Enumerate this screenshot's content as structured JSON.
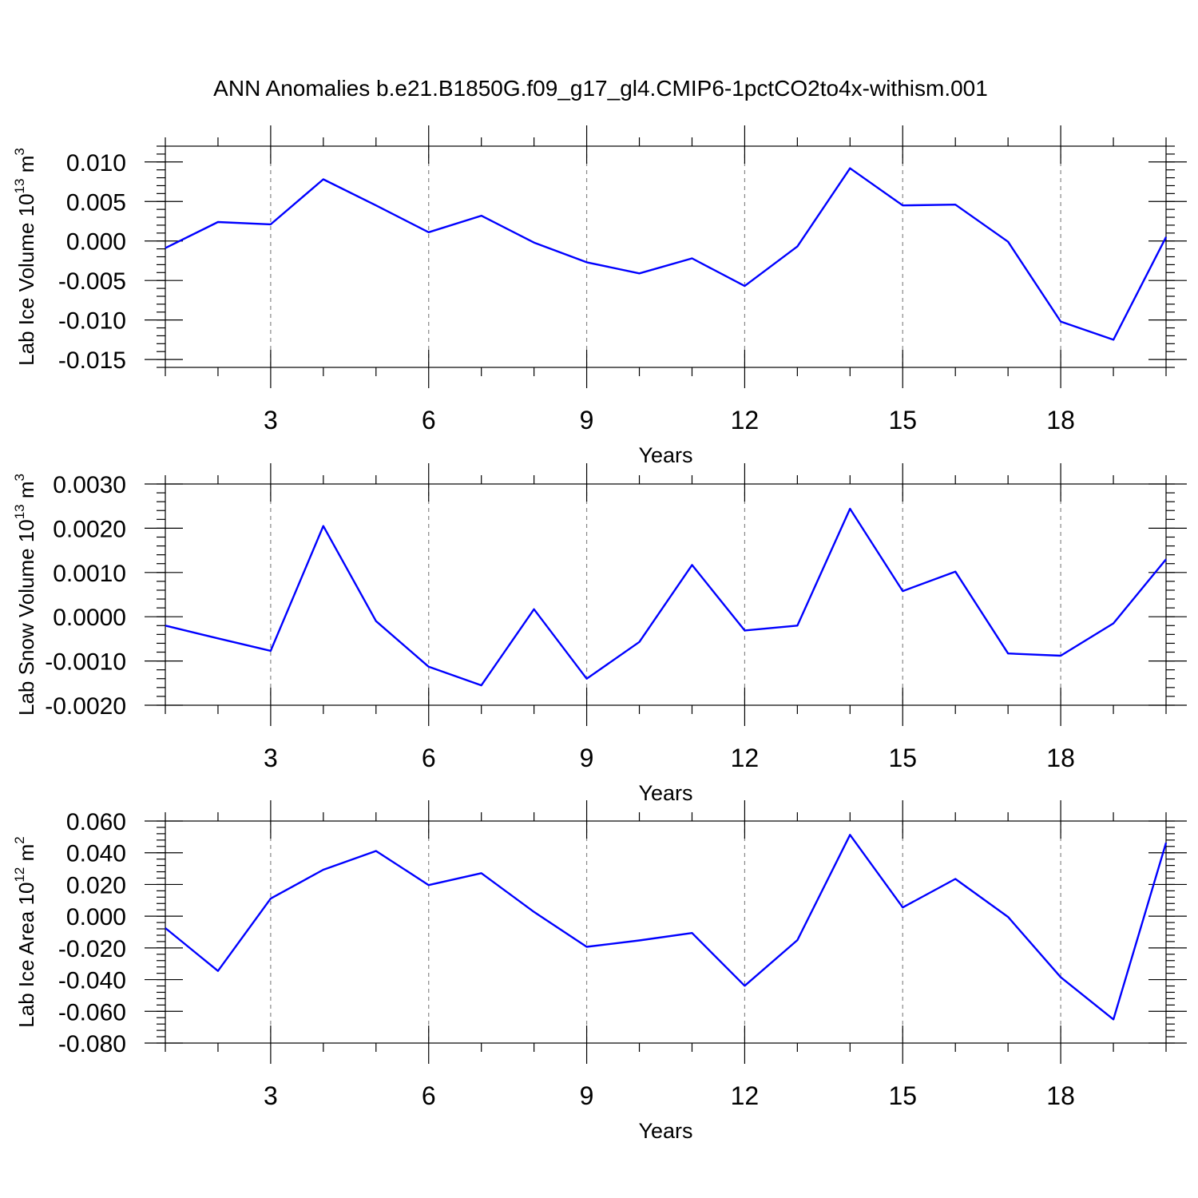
{
  "chart_data": {
    "title": "ANN Anomalies b.e21.B1850G.f09_g17_gl4.CMIP6-1pctCO2to4x-withism.001",
    "type": "line",
    "line_color": "#0000ff",
    "panels": [
      {
        "type": "line",
        "ylabel": {
          "name": "Lab Ice Volume 10",
          "exp": "13",
          "unit": " m",
          "unit_exp": "3"
        },
        "xlabel": "Years",
        "xlim": [
          1,
          20
        ],
        "ylim": [
          -0.016,
          0.012
        ],
        "x_major_ticks": [
          3,
          6,
          9,
          12,
          15,
          18
        ],
        "x_tick_labels": [
          "3",
          "6",
          "9",
          "12",
          "15",
          "18"
        ],
        "y_major_ticks": [
          -0.015,
          -0.01,
          -0.005,
          0.0,
          0.005,
          0.01
        ],
        "y_tick_labels": [
          "-0.015",
          "-0.010",
          "-0.005",
          "0.000",
          "0.005",
          "0.010"
        ],
        "y_minor_step": 0.001,
        "x": [
          1,
          2,
          3,
          4,
          5,
          6,
          7,
          8,
          9,
          10,
          11,
          12,
          13,
          14,
          15,
          16,
          17,
          18,
          19,
          20
        ],
        "values": [
          -0.0009,
          0.0024,
          0.0021,
          0.0078,
          0.0045,
          0.0011,
          0.0032,
          -0.0002,
          -0.0027,
          -0.0041,
          -0.0022,
          -0.0057,
          -0.0007,
          0.0092,
          0.0045,
          0.0046,
          -0.0001,
          -0.0102,
          -0.0125,
          0.0005
        ]
      },
      {
        "type": "line",
        "ylabel": {
          "name": "Lab Snow Volume 10",
          "exp": "13",
          "unit": " m",
          "unit_exp": "3"
        },
        "xlabel": "Years",
        "xlim": [
          1,
          20
        ],
        "ylim": [
          -0.002,
          0.003
        ],
        "x_major_ticks": [
          3,
          6,
          9,
          12,
          15,
          18
        ],
        "x_tick_labels": [
          "3",
          "6",
          "9",
          "12",
          "15",
          "18"
        ],
        "y_major_ticks": [
          -0.002,
          -0.001,
          0.0,
          0.001,
          0.002,
          0.003
        ],
        "y_tick_labels": [
          "-0.0020",
          "-0.0010",
          "0.0000",
          "0.0010",
          "0.0020",
          "0.0030"
        ],
        "y_minor_step": 0.0002,
        "x": [
          1,
          2,
          3,
          4,
          5,
          6,
          7,
          8,
          9,
          10,
          11,
          12,
          13,
          14,
          15,
          16,
          17,
          18,
          19,
          20
        ],
        "values": [
          -0.0002,
          -0.00049,
          -0.00077,
          0.00205,
          -0.0001,
          -0.00113,
          -0.00155,
          0.00017,
          -0.0014,
          -0.00057,
          0.00117,
          -0.00031,
          -0.0002,
          0.00244,
          0.00058,
          0.00102,
          -0.00083,
          -0.00088,
          -0.00015,
          0.0013
        ]
      },
      {
        "type": "line",
        "ylabel": {
          "name": "Lab Ice Area 10",
          "exp": "12",
          "unit": " m",
          "unit_exp": "2"
        },
        "xlabel": "Years",
        "xlim": [
          1,
          20
        ],
        "ylim": [
          -0.08,
          0.06
        ],
        "x_major_ticks": [
          3,
          6,
          9,
          12,
          15,
          18
        ],
        "x_tick_labels": [
          "3",
          "6",
          "9",
          "12",
          "15",
          "18"
        ],
        "y_major_ticks": [
          -0.08,
          -0.06,
          -0.04,
          -0.02,
          0.0,
          0.02,
          0.04,
          0.06
        ],
        "y_tick_labels": [
          "-0.080",
          "-0.060",
          "-0.040",
          "-0.020",
          "0.000",
          "0.020",
          "0.040",
          "0.060"
        ],
        "y_minor_step": 0.004,
        "x": [
          1,
          2,
          3,
          4,
          5,
          6,
          7,
          8,
          9,
          10,
          11,
          12,
          13,
          14,
          15,
          16,
          17,
          18,
          19,
          20
        ],
        "values": [
          -0.0075,
          -0.0345,
          0.0111,
          0.0293,
          0.0411,
          0.0196,
          0.0271,
          0.0027,
          -0.0193,
          -0.0153,
          -0.0106,
          -0.0439,
          -0.0151,
          0.0513,
          0.0055,
          0.0235,
          -0.0005,
          -0.0385,
          -0.0651,
          0.0463
        ]
      }
    ]
  }
}
